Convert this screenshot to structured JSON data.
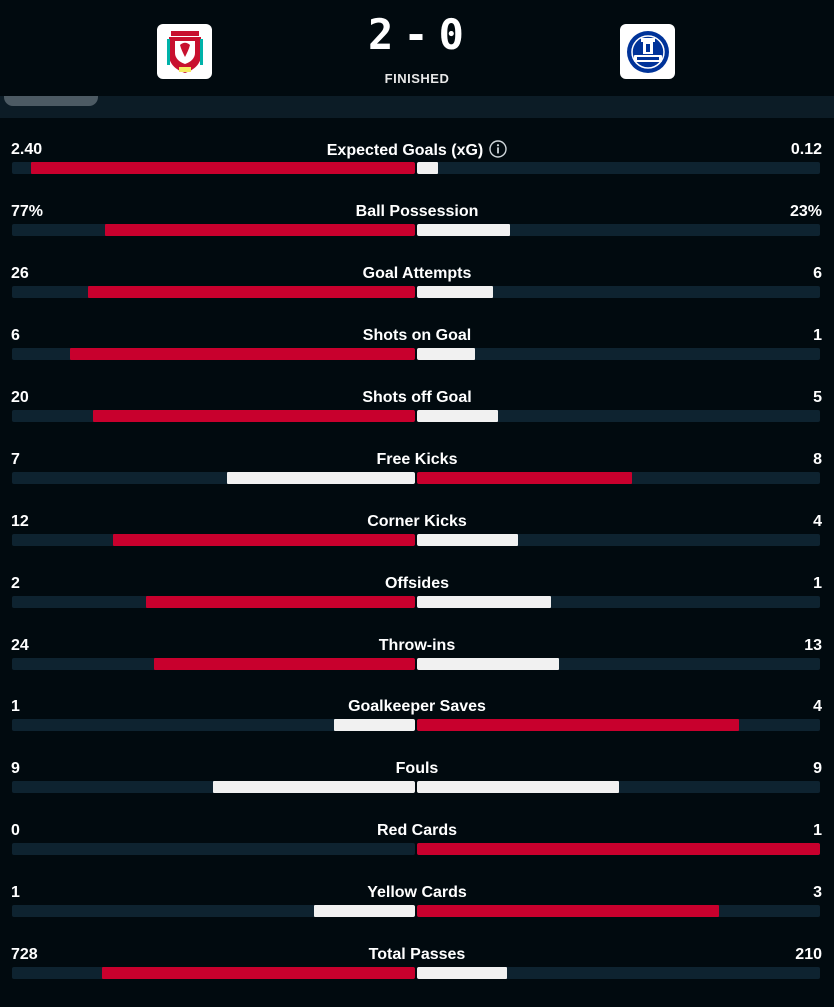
{
  "match": {
    "home_team": {
      "name": "Liverpool",
      "logo_icon": "liverpool-crest-icon",
      "color": "#c8102e"
    },
    "away_team": {
      "name": "Everton",
      "logo_icon": "everton-crest-icon",
      "color": "#003399"
    },
    "home_score": "2",
    "away_score": "0",
    "score_separator": "-",
    "status": "FINISHED"
  },
  "colors": {
    "lead_bar": "#c8002d",
    "trail_bar": "#f1f1f1",
    "track": "#0e2330",
    "background": "#010a0f"
  },
  "stats": [
    {
      "label": "Expected Goals (xG)",
      "home": "2.40",
      "away": "0.12",
      "home_value": 2.4,
      "away_value": 0.12,
      "info": true
    },
    {
      "label": "Ball Possession",
      "home": "77%",
      "away": "23%",
      "home_value": 77,
      "away_value": 23
    },
    {
      "label": "Goal Attempts",
      "home": "26",
      "away": "6",
      "home_value": 26,
      "away_value": 6
    },
    {
      "label": "Shots on Goal",
      "home": "6",
      "away": "1",
      "home_value": 6,
      "away_value": 1
    },
    {
      "label": "Shots off Goal",
      "home": "20",
      "away": "5",
      "home_value": 20,
      "away_value": 5
    },
    {
      "label": "Free Kicks",
      "home": "7",
      "away": "8",
      "home_value": 7,
      "away_value": 8
    },
    {
      "label": "Corner Kicks",
      "home": "12",
      "away": "4",
      "home_value": 12,
      "away_value": 4
    },
    {
      "label": "Offsides",
      "home": "2",
      "away": "1",
      "home_value": 2,
      "away_value": 1
    },
    {
      "label": "Throw-ins",
      "home": "24",
      "away": "13",
      "home_value": 24,
      "away_value": 13
    },
    {
      "label": "Goalkeeper Saves",
      "home": "1",
      "away": "4",
      "home_value": 1,
      "away_value": 4
    },
    {
      "label": "Fouls",
      "home": "9",
      "away": "9",
      "home_value": 9,
      "away_value": 9
    },
    {
      "label": "Red Cards",
      "home": "0",
      "away": "1",
      "home_value": 0,
      "away_value": 1
    },
    {
      "label": "Yellow Cards",
      "home": "1",
      "away": "3",
      "home_value": 1,
      "away_value": 3
    },
    {
      "label": "Total Passes",
      "home": "728",
      "away": "210",
      "home_value": 728,
      "away_value": 210
    }
  ]
}
